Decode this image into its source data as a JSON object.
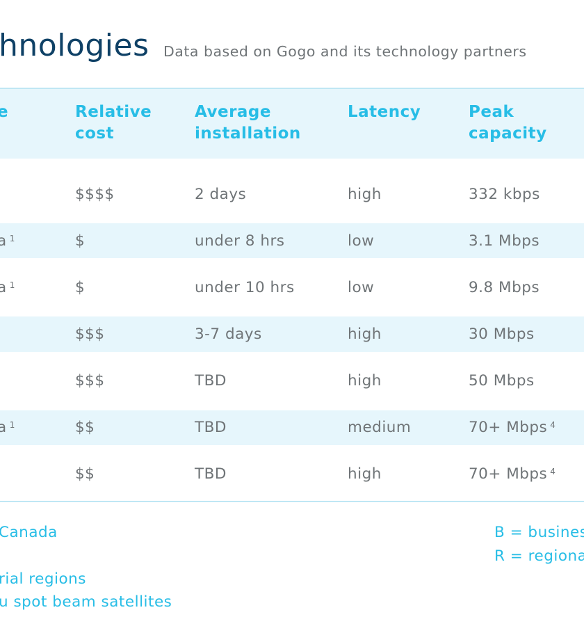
{
  "header": {
    "title": "hnologies",
    "subtitle": "Data based on Gogo and its technology partners"
  },
  "table": {
    "columns": [
      {
        "key": "clip",
        "label": "e"
      },
      {
        "key": "cost",
        "label": "Relative\ncost"
      },
      {
        "key": "install",
        "label": "Average\ninstallation"
      },
      {
        "key": "latency",
        "label": "Latency"
      },
      {
        "key": "peak",
        "label": "Peak\ncapacity"
      }
    ],
    "rows": [
      {
        "clip": "",
        "clip_sup": "",
        "cost": "$$$$",
        "install": "2 days",
        "latency": "high",
        "peak": "332 kbps",
        "peak_sup": ""
      },
      {
        "clip": "a",
        "clip_sup": "1",
        "cost": "$",
        "install": "under 8 hrs",
        "latency": "low",
        "peak": "3.1 Mbps",
        "peak_sup": ""
      },
      {
        "clip": "a",
        "clip_sup": "1",
        "cost": "$",
        "install": "under 10 hrs",
        "latency": "low",
        "peak": "9.8 Mbps",
        "peak_sup": ""
      },
      {
        "clip": "",
        "clip_sup": "",
        "cost": "$$$",
        "install": "3-7 days",
        "latency": "high",
        "peak": "30 Mbps",
        "peak_sup": ""
      },
      {
        "clip": "",
        "clip_sup": "",
        "cost": "$$$",
        "install": "TBD",
        "latency": "high",
        "peak": "50 Mbps",
        "peak_sup": ""
      },
      {
        "clip": "a",
        "clip_sup": "1",
        "cost": "$$",
        "install": "TBD",
        "latency": "medium",
        "peak": "70+ Mbps",
        "peak_sup": "4"
      },
      {
        "clip": "",
        "clip_sup": "",
        "cost": "$$",
        "install": "TBD",
        "latency": "high",
        "peak": "70+ Mbps",
        "peak_sup": "4"
      }
    ]
  },
  "footnotes": {
    "left": [
      "Canada",
      "rial regions",
      "u spot beam satellites"
    ],
    "right": [
      "B = busines",
      "R = regiona"
    ]
  },
  "colors": {
    "title": "#0f4166",
    "accent": "#27bde6",
    "band": "#e6f6fc",
    "text": "#6f7477"
  }
}
